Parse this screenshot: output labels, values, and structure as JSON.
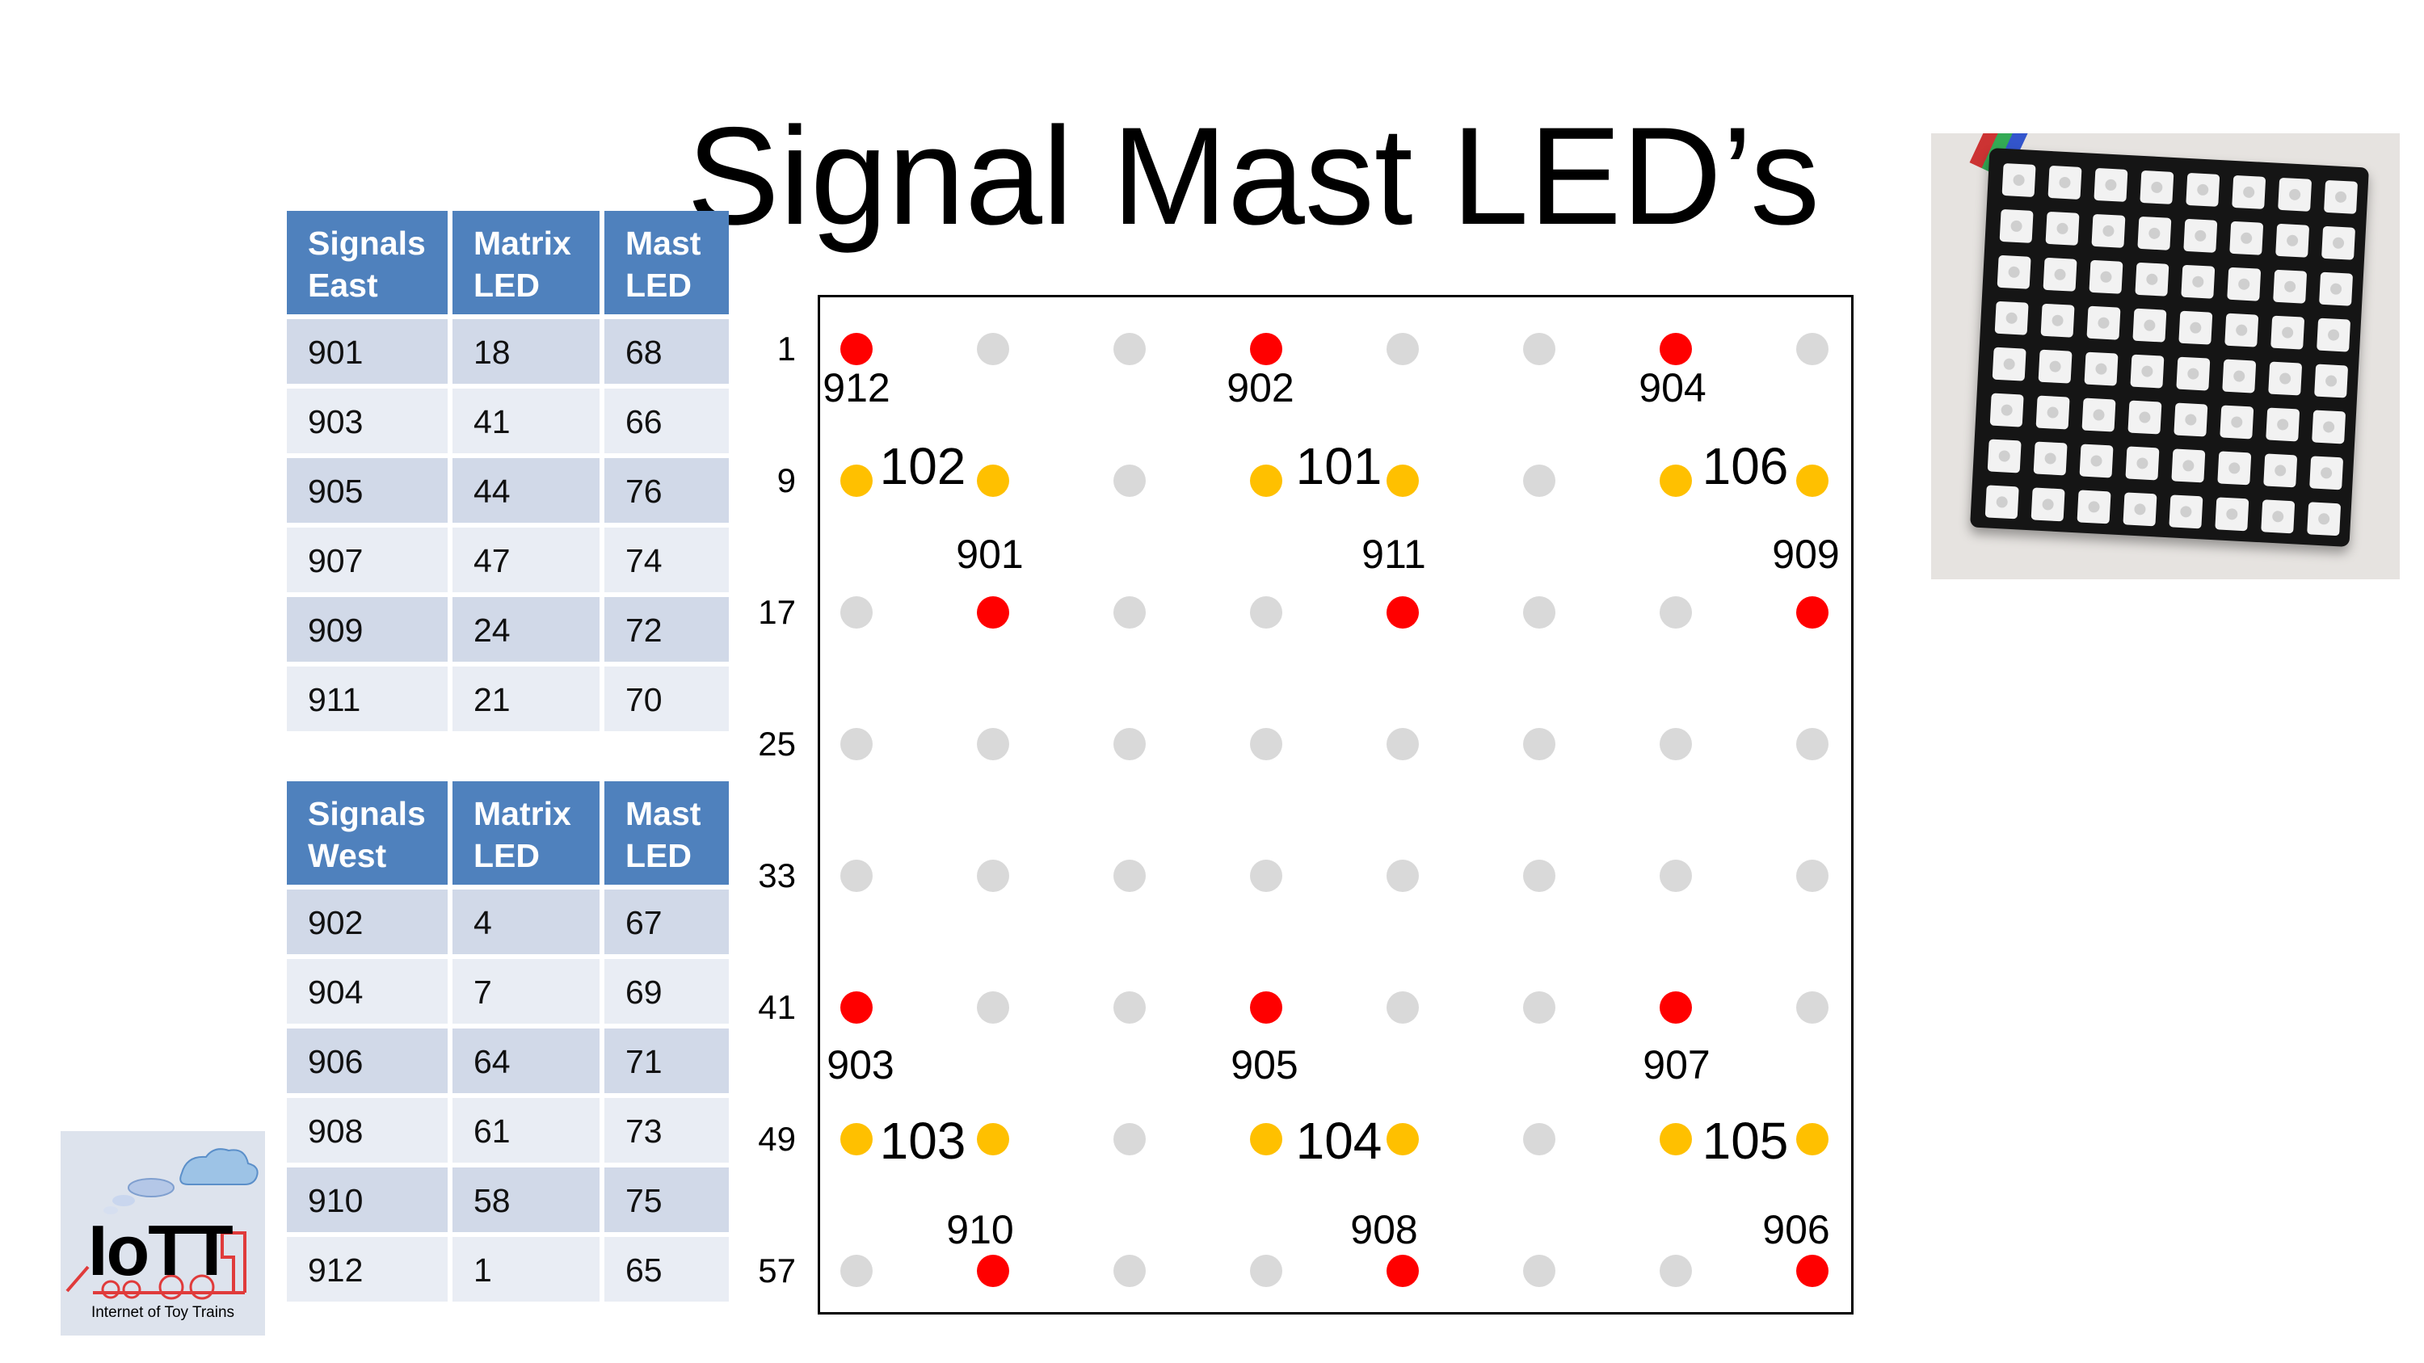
{
  "slide": {
    "title": "Signal Mast LED’s"
  },
  "east_table": {
    "headers": [
      [
        "Signals",
        "East"
      ],
      [
        "Matrix",
        "LED"
      ],
      [
        "Mast",
        "LED"
      ]
    ],
    "rows": [
      [
        "901",
        "18",
        "68"
      ],
      [
        "903",
        "41",
        "66"
      ],
      [
        "905",
        "44",
        "76"
      ],
      [
        "907",
        "47",
        "74"
      ],
      [
        "909",
        "24",
        "72"
      ],
      [
        "911",
        "21",
        "70"
      ]
    ]
  },
  "west_table": {
    "headers": [
      [
        "Signals",
        "West"
      ],
      [
        "Matrix",
        "LED"
      ],
      [
        "Mast",
        "LED"
      ]
    ],
    "rows": [
      [
        "902",
        "4",
        "67"
      ],
      [
        "904",
        "7",
        "69"
      ],
      [
        "906",
        "64",
        "71"
      ],
      [
        "908",
        "61",
        "73"
      ],
      [
        "910",
        "58",
        "75"
      ],
      [
        "912",
        "1",
        "65"
      ]
    ]
  },
  "matrix": {
    "row_labels": [
      "1",
      "9",
      "17",
      "25",
      "33",
      "41",
      "49",
      "57"
    ],
    "colors": {
      "red": "#ff0000",
      "amber": "#ffc000",
      "off": "#d9d9d9"
    },
    "rows": [
      [
        "R",
        "G",
        "G",
        "R",
        "G",
        "G",
        "R",
        "G"
      ],
      [
        "A",
        "A",
        "G",
        "A",
        "A",
        "G",
        "A",
        "A"
      ],
      [
        "G",
        "R",
        "G",
        "G",
        "R",
        "G",
        "G",
        "R"
      ],
      [
        "G",
        "G",
        "G",
        "G",
        "G",
        "G",
        "G",
        "G"
      ],
      [
        "G",
        "G",
        "G",
        "G",
        "G",
        "G",
        "G",
        "G"
      ],
      [
        "R",
        "G",
        "G",
        "R",
        "G",
        "G",
        "R",
        "G"
      ],
      [
        "A",
        "A",
        "G",
        "A",
        "A",
        "G",
        "A",
        "A"
      ],
      [
        "G",
        "R",
        "G",
        "G",
        "R",
        "G",
        "G",
        "R"
      ]
    ],
    "signal_labels": [
      "912",
      "902",
      "904",
      "901",
      "911",
      "909",
      "903",
      "905",
      "907",
      "910",
      "908",
      "906"
    ],
    "mast_labels": [
      "102",
      "101",
      "106",
      "103",
      "104",
      "105"
    ]
  },
  "logo": {
    "text": "IoTT",
    "subtitle": "Internet of Toy Trains"
  }
}
